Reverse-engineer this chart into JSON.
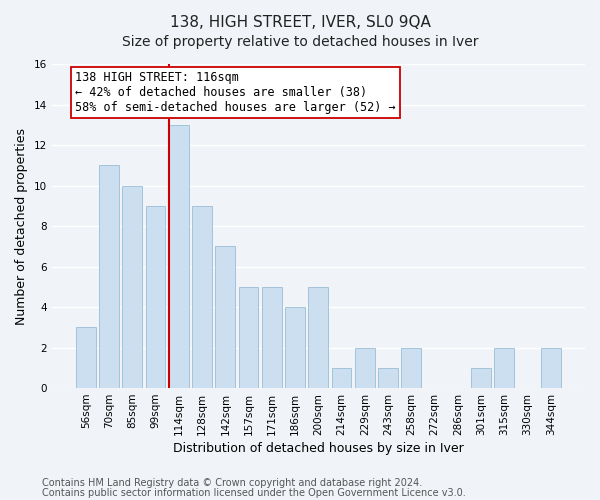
{
  "title": "138, HIGH STREET, IVER, SL0 9QA",
  "subtitle": "Size of property relative to detached houses in Iver",
  "xlabel": "Distribution of detached houses by size in Iver",
  "ylabel": "Number of detached properties",
  "categories": [
    "56sqm",
    "70sqm",
    "85sqm",
    "99sqm",
    "114sqm",
    "128sqm",
    "142sqm",
    "157sqm",
    "171sqm",
    "186sqm",
    "200sqm",
    "214sqm",
    "229sqm",
    "243sqm",
    "258sqm",
    "272sqm",
    "286sqm",
    "301sqm",
    "315sqm",
    "330sqm",
    "344sqm"
  ],
  "values": [
    3,
    11,
    10,
    9,
    13,
    9,
    7,
    5,
    5,
    4,
    5,
    1,
    2,
    1,
    2,
    0,
    0,
    1,
    2,
    0,
    2
  ],
  "bar_color": "#ccdff0",
  "bar_edge_color": "#9bbdd6",
  "highlight_index": 4,
  "highlight_line_color": "#cc0000",
  "ylim": [
    0,
    16
  ],
  "yticks": [
    0,
    2,
    4,
    6,
    8,
    10,
    12,
    14,
    16
  ],
  "annotation_line1": "138 HIGH STREET: 116sqm",
  "annotation_line2": "← 42% of detached houses are smaller (38)",
  "annotation_line3": "58% of semi-detached houses are larger (52) →",
  "annotation_box_edge_color": "#cc0000",
  "footer_line1": "Contains HM Land Registry data © Crown copyright and database right 2024.",
  "footer_line2": "Contains public sector information licensed under the Open Government Licence v3.0.",
  "background_color": "#f0f4f8",
  "grid_color": "#ffffff",
  "title_fontsize": 11,
  "subtitle_fontsize": 10,
  "axis_label_fontsize": 9,
  "tick_fontsize": 7.5,
  "annotation_fontsize": 8.5,
  "footer_fontsize": 7
}
